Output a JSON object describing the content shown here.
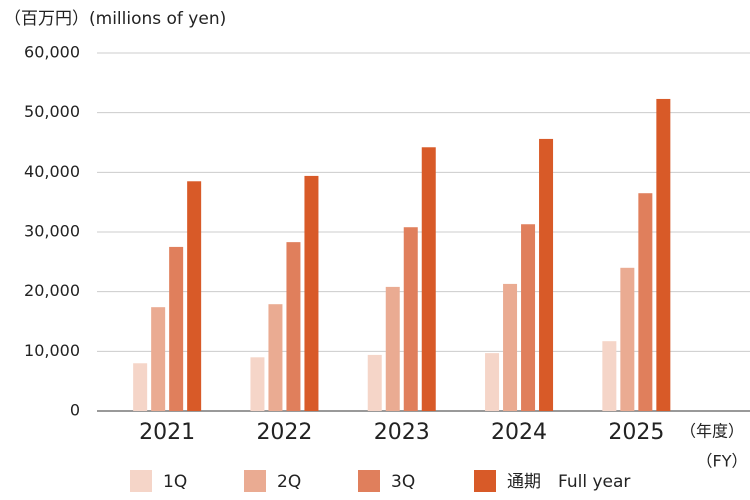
{
  "chart_data": {
    "type": "bar",
    "y_label": "（百万円）(millions of yen)",
    "x_unit": [
      "（年度）",
      "（FY）"
    ],
    "categories": [
      "2021",
      "2022",
      "2023",
      "2024",
      "2025"
    ],
    "series": [
      {
        "name": "1Q",
        "color": "#f5d5c8",
        "values": [
          8000,
          9000,
          9400,
          9700,
          11700
        ]
      },
      {
        "name": "2Q",
        "color": "#eaab92",
        "values": [
          17400,
          17900,
          20800,
          21300,
          24000
        ]
      },
      {
        "name": "3Q",
        "color": "#e07f5c",
        "values": [
          27500,
          28300,
          30800,
          31300,
          36500
        ]
      },
      {
        "name": "通期　Full year",
        "color": "#d85a28",
        "values": [
          38500,
          39400,
          44200,
          45600,
          52300
        ]
      }
    ],
    "ylim": [
      0,
      60000
    ],
    "yticks": [
      0,
      {
        "value": 10000,
        "label": "10,000"
      },
      {
        "value": 20000,
        "label": "20,000"
      },
      {
        "value": 30000,
        "label": "30,000"
      },
      {
        "value": 40000,
        "label": "40,000"
      },
      {
        "value": 50000,
        "label": "50,000"
      },
      {
        "value": 60000,
        "label": "60,000"
      }
    ],
    "grid": true
  }
}
